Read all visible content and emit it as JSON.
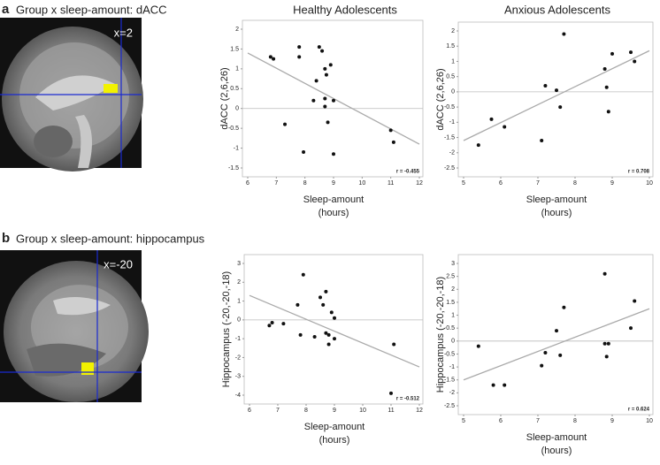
{
  "panels": [
    {
      "letter": "a",
      "title": "Group x sleep-amount: dACC",
      "coordinate": "x=2"
    },
    {
      "letter": "b",
      "title": "Group x sleep-amount: hippocampus",
      "coordinate": "x=-20"
    }
  ],
  "column_headers": [
    "Healthy Adolescents",
    "Anxious Adolescents"
  ],
  "chart_data": [
    {
      "type": "scatter",
      "ylabel": "dACC (2,6,26)",
      "xlabel": [
        "Sleep-amount",
        "(hours)"
      ],
      "x": [
        6.8,
        6.9,
        7.3,
        7.8,
        7.8,
        7.95,
        8.3,
        8.4,
        8.5,
        8.6,
        8.7,
        8.7,
        8.75,
        8.7,
        8.8,
        8.9,
        9.0,
        9.0,
        11.0,
        11.1
      ],
      "y": [
        1.3,
        1.25,
        -0.4,
        1.55,
        1.3,
        -1.1,
        0.2,
        0.7,
        1.55,
        1.45,
        0.05,
        1.0,
        0.85,
        0.25,
        -0.35,
        1.1,
        -1.15,
        0.2,
        -0.55,
        -0.85
      ],
      "xlim": [
        6,
        12
      ],
      "ylim": [
        -1.5,
        2
      ],
      "xticks": [
        6,
        7,
        8,
        9,
        10,
        11,
        12
      ],
      "yticks": [
        -1.5,
        -1,
        -0.5,
        0,
        0.5,
        1,
        1.5,
        2
      ],
      "color": "#111111",
      "trend_line": {
        "x": [
          6,
          12
        ],
        "y": [
          1.4,
          -0.9
        ],
        "color": "#aaaaaa"
      },
      "annotation": "r = -0.455"
    },
    {
      "type": "scatter",
      "ylabel": "dACC (2,6,26)",
      "xlabel": [
        "Sleep-amount",
        "(hours)"
      ],
      "x": [
        5.4,
        5.75,
        6.1,
        7.1,
        7.2,
        7.5,
        7.6,
        7.7,
        8.8,
        8.85,
        8.9,
        9.0,
        9.5,
        9.6
      ],
      "y": [
        -1.75,
        -0.9,
        -1.15,
        -1.6,
        0.2,
        0.05,
        -0.5,
        1.9,
        0.75,
        0.15,
        -0.65,
        1.25,
        1.3,
        1.0
      ],
      "xlim": [
        5,
        10
      ],
      "ylim": [
        -2.5,
        2
      ],
      "xticks": [
        5,
        6,
        7,
        8,
        9,
        10
      ],
      "yticks": [
        -2.5,
        -2,
        -1.5,
        -1,
        -0.5,
        0,
        0.5,
        1,
        1.5,
        2
      ],
      "color": "#111111",
      "trend_line": {
        "x": [
          5,
          10
        ],
        "y": [
          -1.6,
          1.35
        ],
        "color": "#aaaaaa"
      },
      "annotation": "r = 0.708"
    },
    {
      "type": "scatter",
      "ylabel": "Hippocampus (-20,-20,-18)",
      "xlabel": [
        "Sleep-amount",
        "(hours)"
      ],
      "x": [
        6.7,
        6.8,
        7.2,
        7.7,
        7.8,
        7.9,
        8.3,
        8.5,
        8.6,
        8.7,
        8.7,
        8.8,
        8.8,
        8.9,
        9.0,
        9.0,
        11.0,
        11.1
      ],
      "y": [
        -0.3,
        -0.15,
        -0.2,
        0.8,
        -0.8,
        2.4,
        -0.9,
        1.2,
        0.8,
        1.5,
        -0.7,
        -1.3,
        -0.8,
        0.4,
        -1.0,
        0.1,
        -3.9,
        -1.3
      ],
      "xlim": [
        6,
        12
      ],
      "ylim": [
        -4,
        3
      ],
      "xticks": [
        6,
        7,
        8,
        9,
        10,
        11,
        12
      ],
      "yticks": [
        -4,
        -3,
        -2,
        -1,
        0,
        1,
        2,
        3
      ],
      "color": "#111111",
      "trend_line": {
        "x": [
          6,
          12
        ],
        "y": [
          1.3,
          -2.5
        ],
        "color": "#aaaaaa"
      },
      "annotation": "r = -0.512"
    },
    {
      "type": "scatter",
      "ylabel": "Hippocampus (-20,-20,-18)",
      "xlabel": [
        "Sleep-amount",
        "(hours)"
      ],
      "x": [
        5.4,
        5.8,
        6.1,
        7.1,
        7.2,
        7.5,
        7.6,
        7.7,
        8.8,
        8.8,
        8.85,
        8.9,
        9.5,
        9.6
      ],
      "y": [
        -0.2,
        -1.7,
        -1.7,
        -0.95,
        -0.45,
        0.4,
        -0.55,
        1.3,
        2.6,
        -0.1,
        -0.6,
        -0.1,
        0.5,
        1.55
      ],
      "xlim": [
        5,
        10
      ],
      "ylim": [
        -2.5,
        3
      ],
      "xticks": [
        5,
        6,
        7,
        8,
        9,
        10
      ],
      "yticks": [
        -2.5,
        -2,
        -1.5,
        -1,
        -0.5,
        0,
        0.5,
        1,
        1.5,
        2,
        2.5,
        3
      ],
      "color": "#111111",
      "trend_line": {
        "x": [
          5,
          10
        ],
        "y": [
          -1.5,
          1.25
        ],
        "color": "#aaaaaa"
      },
      "annotation": "r = 0.624"
    }
  ]
}
